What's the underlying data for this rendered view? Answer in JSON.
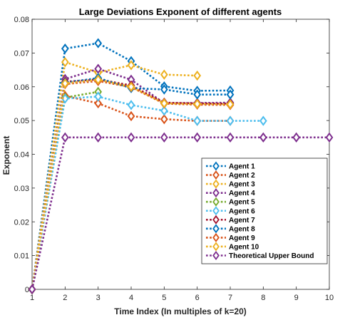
{
  "chart_data": {
    "type": "line",
    "title": "Large Deviations Exponent of different agents",
    "xlabel": "Time Index (In multiples of k=20)",
    "ylabel": "Exponent",
    "xlim": [
      1,
      10
    ],
    "ylim": [
      0,
      0.08
    ],
    "x_ticks": [
      "1",
      "2",
      "3",
      "4",
      "5",
      "6",
      "7",
      "8",
      "9",
      "10"
    ],
    "y_ticks": [
      "0",
      "0.01",
      "0.02",
      "0.03",
      "0.04",
      "0.05",
      "0.06",
      "0.07",
      "0.08"
    ],
    "grid": false,
    "legend_position": "right",
    "marker": "diamond",
    "line_style": "dotted",
    "series": [
      {
        "name": "Agent 1",
        "color": "#0072BD",
        "x": [
          1,
          2,
          3,
          4,
          5,
          6,
          7
        ],
        "y": [
          0,
          0.0713,
          0.0729,
          0.0676,
          0.0601,
          0.0588,
          0.0589
        ]
      },
      {
        "name": "Agent 2",
        "color": "#D95319",
        "x": [
          1,
          2,
          3,
          4,
          5,
          6,
          7
        ],
        "y": [
          0,
          0.0573,
          0.0551,
          0.0513,
          0.0504,
          0.0499,
          0.0499
        ]
      },
      {
        "name": "Agent 3",
        "color": "#EDB120",
        "x": [
          1,
          2,
          3,
          4,
          5,
          6
        ],
        "y": [
          0,
          0.0673,
          0.0642,
          0.0664,
          0.0636,
          0.0633
        ]
      },
      {
        "name": "Agent 4",
        "color": "#7E2F8E",
        "x": [
          1,
          2,
          3,
          4,
          5,
          6,
          7
        ],
        "y": [
          0,
          0.0623,
          0.0653,
          0.0621,
          0.0551,
          0.0552,
          0.0553
        ]
      },
      {
        "name": "Agent 5",
        "color": "#77AC30",
        "x": [
          1,
          2,
          3
        ],
        "y": [
          0,
          0.0568,
          0.0585
        ]
      },
      {
        "name": "Agent 6",
        "color": "#4DBEEE",
        "x": [
          1,
          2,
          3,
          4,
          5,
          6,
          7,
          8
        ],
        "y": [
          0,
          0.0565,
          0.0571,
          0.0546,
          0.0529,
          0.0499,
          0.0499,
          0.0499
        ]
      },
      {
        "name": "Agent 7",
        "color": "#A2142F",
        "x": [
          1,
          2,
          3,
          4,
          5,
          6,
          7
        ],
        "y": [
          0,
          0.0615,
          0.0622,
          0.0604,
          0.0553,
          0.0551,
          0.055
        ]
      },
      {
        "name": "Agent 8",
        "color": "#0072BD",
        "x": [
          1,
          2,
          3,
          4,
          5,
          6,
          7
        ],
        "y": [
          0,
          0.0612,
          0.0626,
          0.0596,
          0.0592,
          0.0577,
          0.0577
        ]
      },
      {
        "name": "Agent 9",
        "color": "#D95319",
        "x": [
          1,
          2,
          3,
          4,
          5,
          6,
          7
        ],
        "y": [
          0,
          0.0608,
          0.0617,
          0.0599,
          0.055,
          0.0547,
          0.0546
        ]
      },
      {
        "name": "Agent 10",
        "color": "#EDB120",
        "x": [
          1,
          2,
          3,
          4,
          5,
          6,
          7
        ],
        "y": [
          0,
          0.061,
          0.0621,
          0.06,
          0.0551,
          0.0549,
          0.0548
        ]
      },
      {
        "name": "Theoretical Upper Bound",
        "color": "#7E2F8E",
        "x": [
          1,
          2,
          3,
          4,
          5,
          6,
          7,
          8,
          9,
          10
        ],
        "y": [
          0,
          0.045,
          0.045,
          0.045,
          0.045,
          0.045,
          0.045,
          0.045,
          0.045,
          0.045
        ]
      }
    ]
  }
}
